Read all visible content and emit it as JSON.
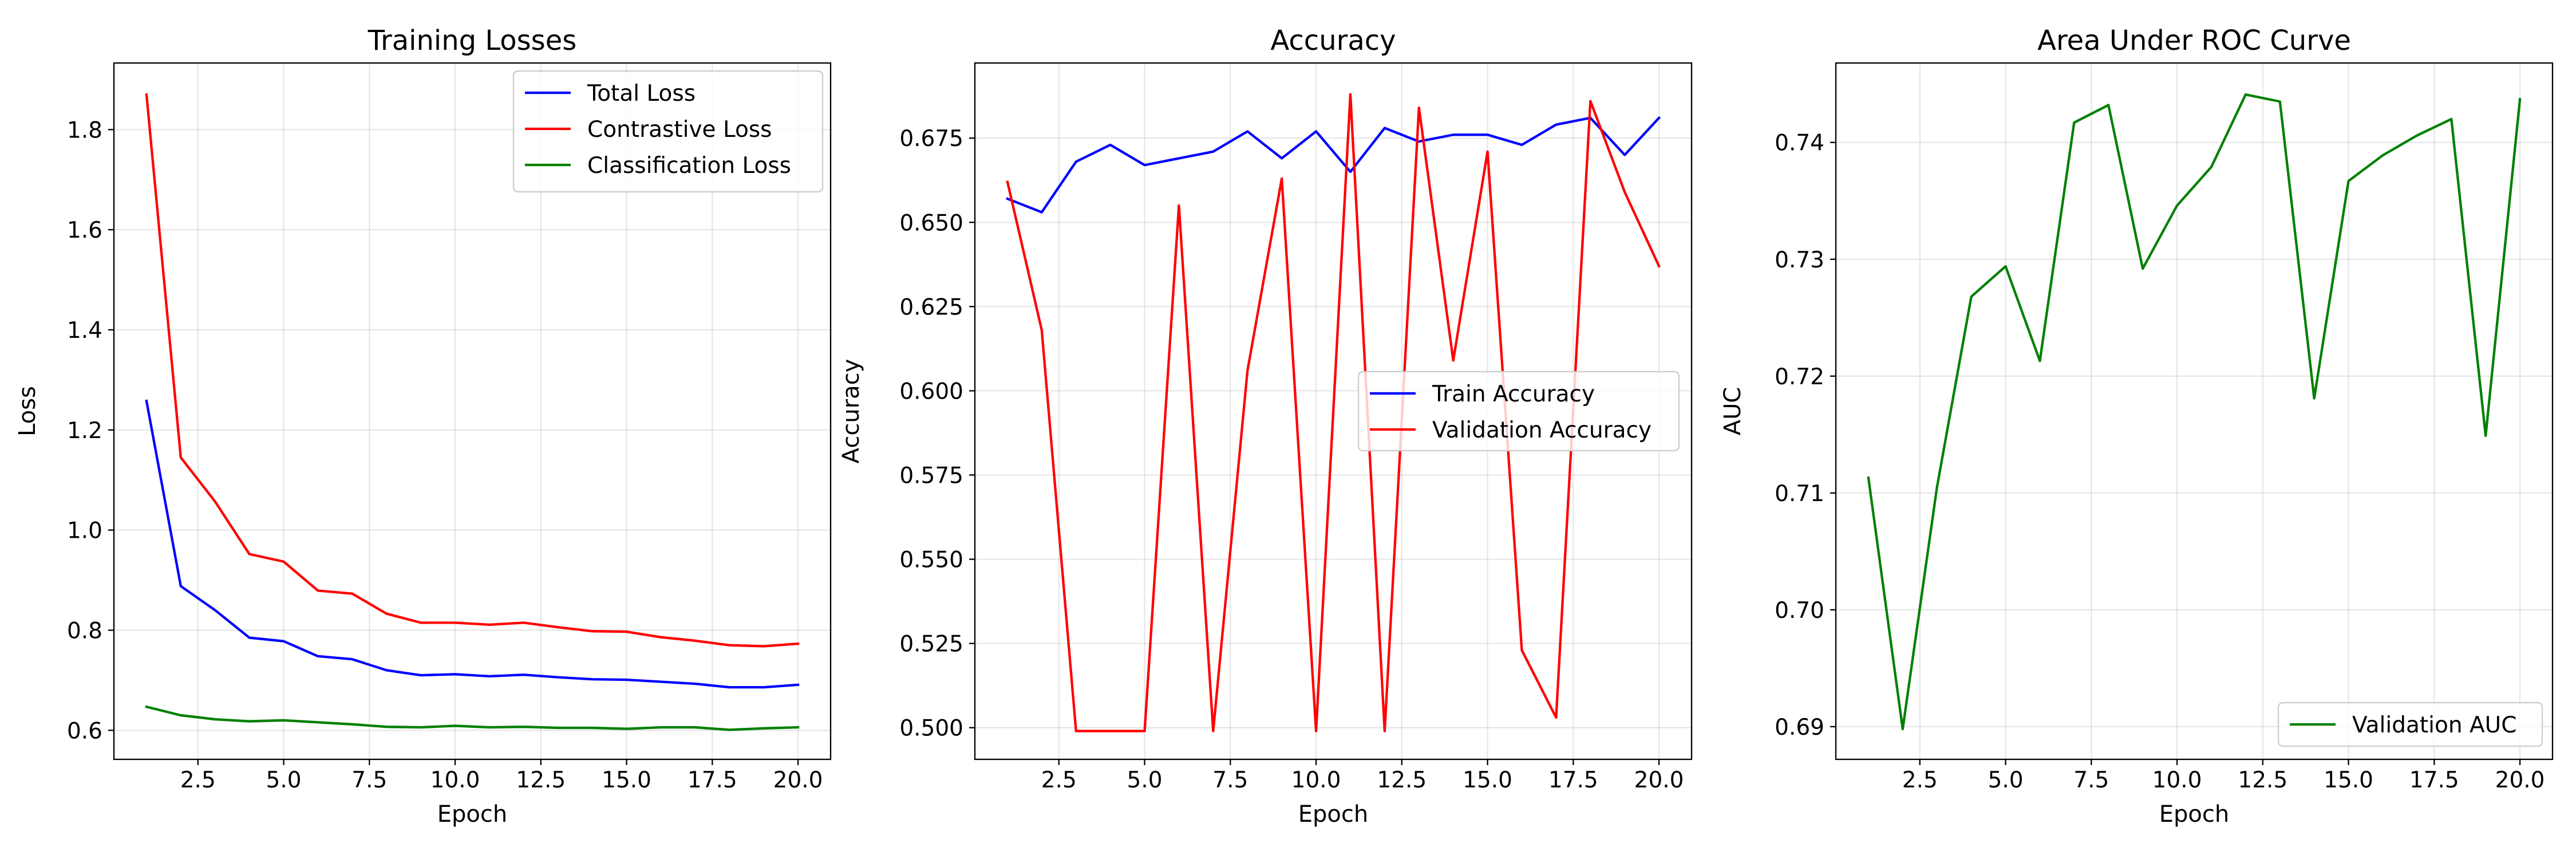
{
  "chart_data": [
    {
      "type": "line",
      "title": "Training Losses",
      "xlabel": "Epoch",
      "ylabel": "Loss",
      "xlim": [
        0.05,
        20.95
      ],
      "ylim": [
        0.542,
        1.933
      ],
      "xticks": [
        2.5,
        5.0,
        7.5,
        10.0,
        12.5,
        15.0,
        17.5,
        20.0
      ],
      "xtick_labels": [
        "2.5",
        "5.0",
        "7.5",
        "10.0",
        "12.5",
        "15.0",
        "17.5",
        "20.0"
      ],
      "yticks": [
        0.6,
        0.8,
        1.0,
        1.2,
        1.4,
        1.6,
        1.8
      ],
      "ytick_labels": [
        "0.6",
        "0.8",
        "1.0",
        "1.2",
        "1.4",
        "1.6",
        "1.8"
      ],
      "grid": true,
      "legend_position": "top-right",
      "x": [
        1,
        2,
        3,
        4,
        5,
        6,
        7,
        8,
        9,
        10,
        11,
        12,
        13,
        14,
        15,
        16,
        17,
        18,
        19,
        20
      ],
      "series": [
        {
          "name": "Total Loss",
          "color": "#0000ff",
          "values": [
            1.258,
            0.888,
            0.84,
            0.785,
            0.778,
            0.748,
            0.742,
            0.72,
            0.71,
            0.712,
            0.708,
            0.711,
            0.706,
            0.702,
            0.701,
            0.697,
            0.693,
            0.686,
            0.686,
            0.691
          ]
        },
        {
          "name": "Contrastive Loss",
          "color": "#ff0000",
          "values": [
            1.87,
            1.145,
            1.057,
            0.952,
            0.937,
            0.879,
            0.873,
            0.833,
            0.815,
            0.815,
            0.811,
            0.815,
            0.806,
            0.798,
            0.797,
            0.786,
            0.779,
            0.77,
            0.768,
            0.773
          ]
        },
        {
          "name": "Classification Loss",
          "color": "#008000",
          "values": [
            0.647,
            0.63,
            0.622,
            0.618,
            0.62,
            0.616,
            0.612,
            0.607,
            0.606,
            0.609,
            0.606,
            0.607,
            0.605,
            0.605,
            0.603,
            0.606,
            0.606,
            0.601,
            0.604,
            0.606
          ]
        }
      ]
    },
    {
      "type": "line",
      "title": "Accuracy",
      "xlabel": "Epoch",
      "ylabel": "Accuracy",
      "xlim": [
        0.05,
        20.95
      ],
      "ylim": [
        0.4906,
        0.6973
      ],
      "xticks": [
        2.5,
        5.0,
        7.5,
        10.0,
        12.5,
        15.0,
        17.5,
        20.0
      ],
      "xtick_labels": [
        "2.5",
        "5.0",
        "7.5",
        "10.0",
        "12.5",
        "15.0",
        "17.5",
        "20.0"
      ],
      "yticks": [
        0.5,
        0.525,
        0.55,
        0.575,
        0.6,
        0.625,
        0.65,
        0.675
      ],
      "ytick_labels": [
        "0.500",
        "0.525",
        "0.550",
        "0.575",
        "0.600",
        "0.625",
        "0.650",
        "0.675"
      ],
      "grid": true,
      "legend_position": "center-right",
      "x": [
        1,
        2,
        3,
        4,
        5,
        6,
        7,
        8,
        9,
        10,
        11,
        12,
        13,
        14,
        15,
        16,
        17,
        18,
        19,
        20
      ],
      "series": [
        {
          "name": "Train Accuracy",
          "color": "#0000ff",
          "values": [
            0.657,
            0.653,
            0.668,
            0.673,
            0.667,
            0.669,
            0.671,
            0.677,
            0.669,
            0.677,
            0.665,
            0.678,
            0.674,
            0.676,
            0.676,
            0.673,
            0.679,
            0.681,
            0.67,
            0.681
          ]
        },
        {
          "name": "Validation Accuracy",
          "color": "#ff0000",
          "values": [
            0.662,
            0.618,
            0.499,
            0.499,
            0.499,
            0.655,
            0.499,
            0.606,
            0.663,
            0.499,
            0.688,
            0.499,
            0.684,
            0.609,
            0.671,
            0.523,
            0.503,
            0.686,
            0.659,
            0.637
          ]
        }
      ]
    },
    {
      "type": "line",
      "title": "Area Under ROC Curve",
      "xlabel": "Epoch",
      "ylabel": "AUC",
      "xlim": [
        0.05,
        20.95
      ],
      "ylim": [
        0.6872,
        0.7468
      ],
      "xticks": [
        2.5,
        5.0,
        7.5,
        10.0,
        12.5,
        15.0,
        17.5,
        20.0
      ],
      "xtick_labels": [
        "2.5",
        "5.0",
        "7.5",
        "10.0",
        "12.5",
        "15.0",
        "17.5",
        "20.0"
      ],
      "yticks": [
        0.69,
        0.7,
        0.71,
        0.72,
        0.73,
        0.74
      ],
      "ytick_labels": [
        "0.69",
        "0.70",
        "0.71",
        "0.72",
        "0.73",
        "0.74"
      ],
      "grid": true,
      "legend_position": "bottom-right",
      "x": [
        1,
        2,
        3,
        4,
        5,
        6,
        7,
        8,
        9,
        10,
        11,
        12,
        13,
        14,
        15,
        16,
        17,
        18,
        19,
        20
      ],
      "series": [
        {
          "name": "Validation AUC",
          "color": "#008000",
          "values": [
            0.7113,
            0.6898,
            0.7105,
            0.7268,
            0.7294,
            0.7213,
            0.7417,
            0.7432,
            0.7292,
            0.7346,
            0.7379,
            0.7441,
            0.7435,
            0.7181,
            0.7367,
            0.7389,
            0.7406,
            0.742,
            0.7149,
            0.7437
          ]
        }
      ]
    }
  ]
}
